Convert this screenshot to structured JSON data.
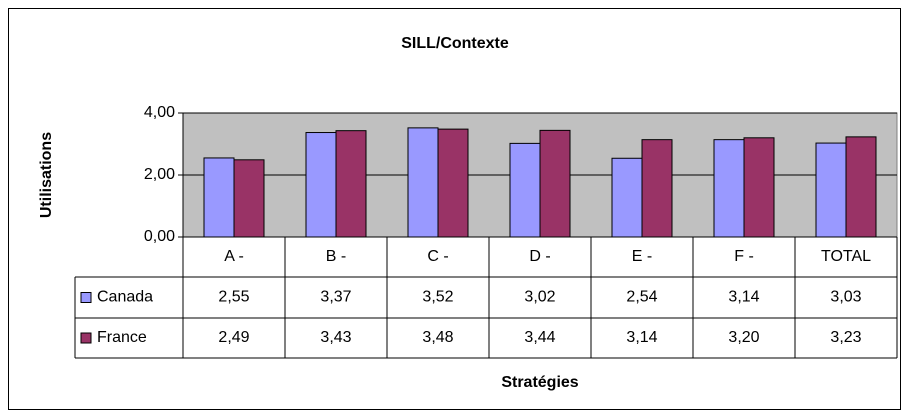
{
  "chart_data": {
    "type": "bar",
    "title": "SILL/Contexte",
    "xlabel": "Stratégies",
    "ylabel": "Utilisations",
    "categories": [
      "A -",
      "B -",
      "C -",
      "D -",
      "E -",
      "F -",
      "TOTAL"
    ],
    "series": [
      {
        "name": "Canada",
        "color": "#9999ff",
        "values": [
          2.55,
          3.37,
          3.52,
          3.02,
          2.54,
          3.14,
          3.03
        ],
        "value_labels": [
          "2,55",
          "3,37",
          "3,52",
          "3,02",
          "2,54",
          "3,14",
          "3,03"
        ]
      },
      {
        "name": "France",
        "color": "#993366",
        "values": [
          2.49,
          3.43,
          3.48,
          3.44,
          3.14,
          3.2,
          3.23
        ],
        "value_labels": [
          "2,49",
          "3,43",
          "3,48",
          "3,44",
          "3,14",
          "3,20",
          "3,23"
        ]
      }
    ],
    "ylim": [
      0,
      4
    ],
    "yticks": [
      {
        "value": 0,
        "label": "0,00"
      },
      {
        "value": 2,
        "label": "2,00"
      },
      {
        "value": 4,
        "label": "4,00"
      }
    ],
    "grid": true,
    "plot_background": "#c0c0c0"
  }
}
